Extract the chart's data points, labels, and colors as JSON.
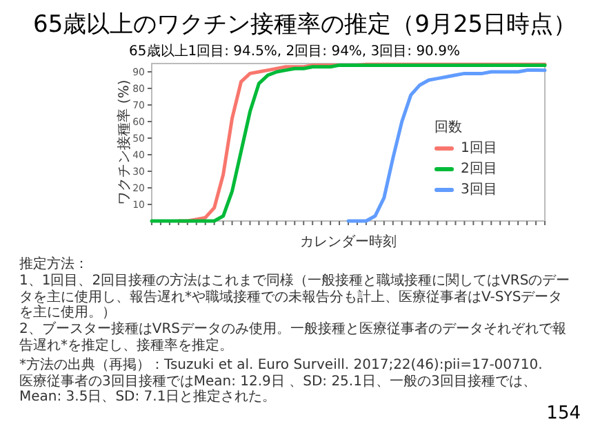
{
  "chart_data": {
    "type": "line",
    "title": "65歳以上のワクチン接種率の推定（9月25日時点）",
    "subtitle": "65歳以上1回目: 94.5%, 2回目: 94%, 3回目: 90.9%",
    "xlabel": "カレンダー時刻",
    "ylabel": "ワクチン接種率 (%)",
    "legend_title": "回数",
    "categories": [
      null,
      null,
      null,
      null,
      null,
      null,
      null,
      null,
      null,
      null,
      null,
      null,
      null,
      null,
      null,
      null,
      null,
      null,
      null,
      null,
      null,
      null,
      null,
      null,
      null,
      null,
      null,
      null,
      null,
      null,
      null,
      null,
      null,
      null,
      null,
      null,
      null,
      null,
      null,
      null,
      null,
      null,
      null,
      null,
      null
    ],
    "series": [
      {
        "name": "1回目",
        "color": "#f8766d",
        "values": [
          null,
          null,
          null,
          0,
          0,
          1,
          2,
          8,
          28,
          62,
          84,
          89,
          90,
          91,
          92,
          93,
          93,
          93,
          94,
          94,
          94,
          94,
          94,
          94,
          94.5,
          94.5,
          94.5,
          94.5,
          94.5,
          94.5,
          94.5,
          94.5,
          94.5,
          94.5,
          94.5,
          94.5,
          94.5,
          94.5,
          94.5,
          94.5,
          94.5,
          94.5,
          94.5,
          94.5,
          94.5
        ]
      },
      {
        "name": "2回目",
        "color": "#00ba38",
        "values": [
          0,
          0,
          0,
          0,
          0,
          0,
          0,
          0,
          3,
          18,
          42,
          66,
          83,
          88,
          90,
          91,
          92,
          92,
          93,
          93,
          93,
          94,
          94,
          94,
          94,
          94,
          94,
          94,
          94,
          94,
          94,
          94,
          94,
          94,
          94,
          94,
          94,
          94,
          94,
          94,
          94,
          94,
          94,
          94,
          94
        ]
      },
      {
        "name": "3回目",
        "color": "#619cff",
        "values": [
          null,
          null,
          null,
          null,
          null,
          null,
          null,
          null,
          null,
          null,
          null,
          null,
          null,
          null,
          null,
          null,
          null,
          null,
          null,
          null,
          null,
          null,
          0,
          0,
          0,
          3,
          14,
          38,
          60,
          76,
          82,
          85,
          86,
          87,
          88,
          89,
          89,
          89,
          90,
          90,
          90,
          90,
          91,
          91,
          90.9
        ]
      }
    ],
    "ylim": [
      0,
      95
    ],
    "yticks": [
      10,
      20,
      30,
      40,
      50,
      60,
      70,
      80,
      90
    ],
    "grid": false,
    "legend": "bottom right",
    "annotations": [
      "推定方法：",
      "1、1回目、2回目接種の方法はこれまで同様（一般接種と職域接種に関してはVRSのデータを主に使用し、報告遅れ*や職域接種での未報告分も計上、医療従事者はV-SYSデータを主に使用。）",
      "2、ブースター接種はVRSデータのみ使用。一般接種と医療従事者のデータそれぞれで報告遅れ*を推定し、接種率を推定。",
      "*方法の出典（再掲）：Tsuzuki et al. Euro Surveill. 2017;22(46):pii=17-00710.医療従事者の3回目接種ではMean: 12.9日 、SD: 25.1日、一般の3回目接種では、Mean: 3.5日、SD: 7.1日と推定された。",
      "154"
    ]
  }
}
